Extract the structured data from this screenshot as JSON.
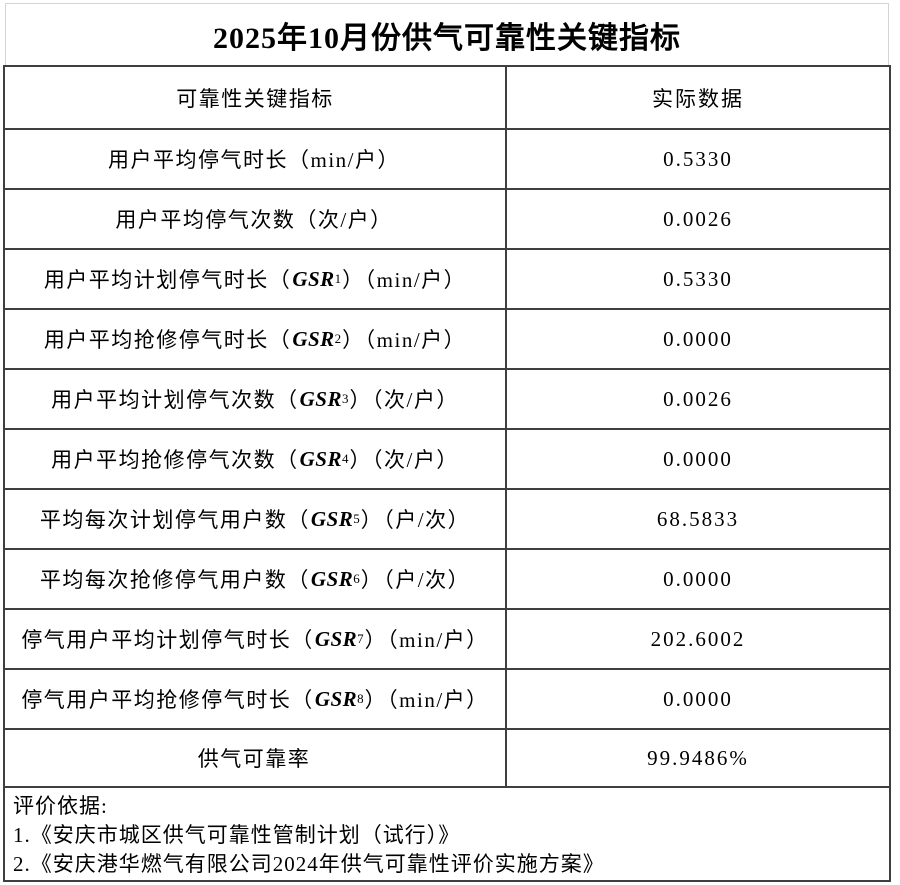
{
  "title": "2025年10月份供气可靠性关键指标",
  "table": {
    "header": {
      "indicator": "可靠性关键指标",
      "value": "实际数据"
    },
    "rows": [
      {
        "pre": "用户平均停气时长（min/户）",
        "gsr": "",
        "sub": "",
        "post": "",
        "value": "0.5330"
      },
      {
        "pre": "用户平均停气次数（次/户）",
        "gsr": "",
        "sub": "",
        "post": "",
        "value": "0.0026"
      },
      {
        "pre": "用户平均计划停气时长（",
        "gsr": "GSR",
        "sub": "1",
        "post": "）（min/户）",
        "value": "0.5330"
      },
      {
        "pre": "用户平均抢修停气时长（",
        "gsr": "GSR",
        "sub": "2",
        "post": "）（min/户）",
        "value": "0.0000"
      },
      {
        "pre": "用户平均计划停气次数（",
        "gsr": "GSR",
        "sub": "3",
        "post": "）（次/户）",
        "value": "0.0026"
      },
      {
        "pre": "用户平均抢修停气次数（",
        "gsr": "GSR",
        "sub": "4",
        "post": "）（次/户）",
        "value": "0.0000"
      },
      {
        "pre": "平均每次计划停气用户数（",
        "gsr": "GSR",
        "sub": "5",
        "post": "）（户/次）",
        "value": "68.5833"
      },
      {
        "pre": "平均每次抢修停气用户数（",
        "gsr": "GSR",
        "sub": "6",
        "post": "）（户/次）",
        "value": "0.0000"
      },
      {
        "pre": "停气用户平均计划停气时长（",
        "gsr": "GSR",
        "sub": "7",
        "post": "）（min/户）",
        "value": "202.6002"
      },
      {
        "pre": "停气用户平均抢修停气时长（",
        "gsr": "GSR",
        "sub": "8",
        "post": "）（min/户）",
        "value": "0.0000"
      },
      {
        "pre": "供气可靠率",
        "gsr": "",
        "sub": "",
        "post": "",
        "value": "99.9486%"
      }
    ],
    "footer": {
      "heading": "评价依据:",
      "items": [
        "1.《安庆市城区供气可靠性管制计划（试行）》",
        "2.《安庆港华燃气有限公司2024年供气可靠性评价实施方案》"
      ]
    }
  },
  "colors": {
    "table_border": "#3f3f3f",
    "title_border": "#d5d5d5",
    "text": "#000000",
    "background": "#ffffff"
  }
}
